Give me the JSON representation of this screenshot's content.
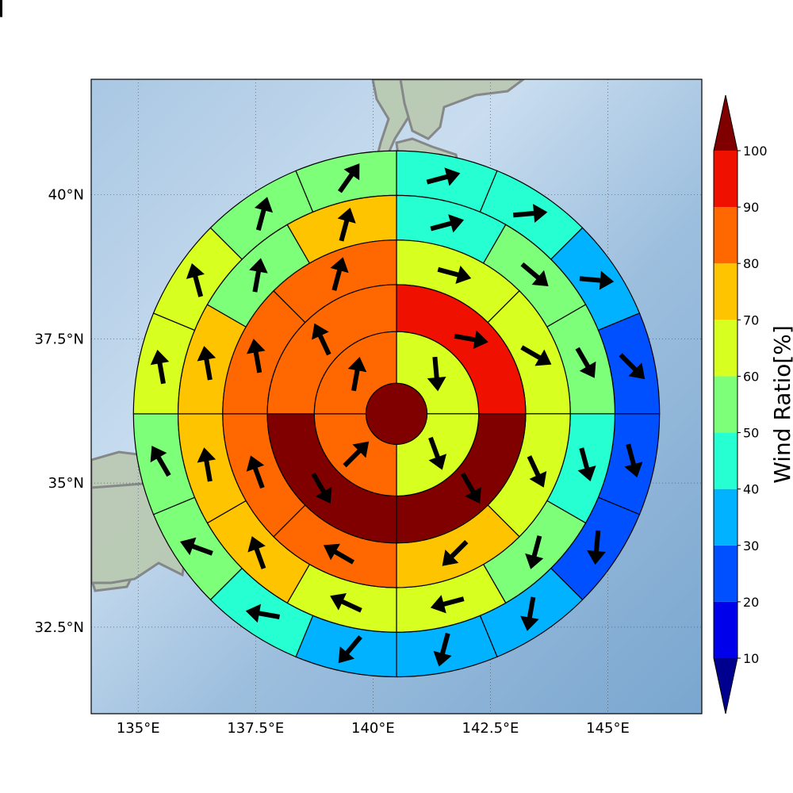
{
  "chart_data": {
    "type": "heatmap",
    "subtype": "polar-sector-map-with-wind-vectors",
    "title": "",
    "x_axis": {
      "range": [
        134.0,
        147.0
      ],
      "ticks": [
        135,
        137.5,
        140,
        142.5,
        145
      ],
      "tick_labels": [
        "135°E",
        "137.5°E",
        "140°E",
        "142.5°E",
        "145°E"
      ]
    },
    "y_axis": {
      "range": [
        31.0,
        42.0
      ],
      "ticks": [
        32.5,
        35,
        37.5,
        40
      ],
      "tick_labels": [
        "32.5°N",
        "35°N",
        "37.5°N",
        "40°N"
      ]
    },
    "grid": true,
    "basemap": "shaded relief (Japan coastline)",
    "center": {
      "lon": 140.5,
      "lat": 36.2
    },
    "ring_radii_deg_lon": [
      0.65,
      1.75,
      2.75,
      3.7,
      4.65,
      5.6
    ],
    "sector_start_deg_clockwise_from_north": 0,
    "colorbar": {
      "title": "Wind Ratio[%]",
      "levels": [
        10,
        20,
        30,
        40,
        50,
        60,
        70,
        80,
        90,
        100
      ],
      "tick_labels": [
        "10",
        "20",
        "30",
        "40",
        "50",
        "60",
        "70",
        "80",
        "90",
        "100"
      ],
      "colors": [
        "#00008f",
        "#0000ea",
        "#0050ff",
        "#00b2ff",
        "#25ffd2",
        "#7dff7a",
        "#d7ff20",
        "#ffc400",
        "#ff6800",
        "#f01000",
        "#800000"
      ],
      "extend": "both"
    },
    "center_value": 100,
    "rings": [
      {
        "ring": 1,
        "sectors": 4,
        "values": [
          68,
          62,
          85,
          85
        ],
        "wind_dir_deg": [
          175,
          160,
          45,
          10
        ]
      },
      {
        "ring": 2,
        "sectors": 4,
        "values": [
          92,
          100,
          100,
          85
        ],
        "wind_dir_deg": [
          100,
          150,
          150,
          335
        ]
      },
      {
        "ring": 3,
        "sectors": 8,
        "values": [
          67,
          67,
          65,
          75,
          82,
          82,
          82,
          85
        ],
        "wind_dir_deg": [
          105,
          120,
          155,
          225,
          300,
          340,
          350,
          15
        ]
      },
      {
        "ring": 4,
        "sectors": 12,
        "values": [
          48,
          55,
          57,
          45,
          55,
          62,
          62,
          72,
          72,
          72,
          52,
          75
        ],
        "wind_dir_deg": [
          75,
          130,
          150,
          165,
          195,
          255,
          295,
          340,
          350,
          350,
          10,
          15
        ]
      },
      {
        "ring": 5,
        "sectors": 16,
        "values": [
          48,
          45,
          38,
          28,
          25,
          25,
          32,
          35,
          38,
          45,
          50,
          55,
          62,
          65,
          57,
          52
        ],
        "wind_dir_deg": [
          75,
          85,
          95,
          135,
          165,
          185,
          190,
          195,
          220,
          280,
          290,
          330,
          350,
          345,
          15,
          35
        ]
      },
      {
        "ring": 6,
        "sectors": 20,
        "values": [
          35,
          38,
          32,
          25,
          18,
          22,
          22,
          25,
          25,
          28,
          35,
          35,
          35,
          35,
          42,
          42,
          42,
          45,
          45,
          45
        ],
        "wind_dir_deg": [
          70,
          75,
          90,
          95,
          140,
          165,
          175,
          190,
          200,
          200,
          210,
          240,
          290,
          300,
          320,
          335,
          345,
          350,
          355,
          30
        ]
      }
    ]
  }
}
